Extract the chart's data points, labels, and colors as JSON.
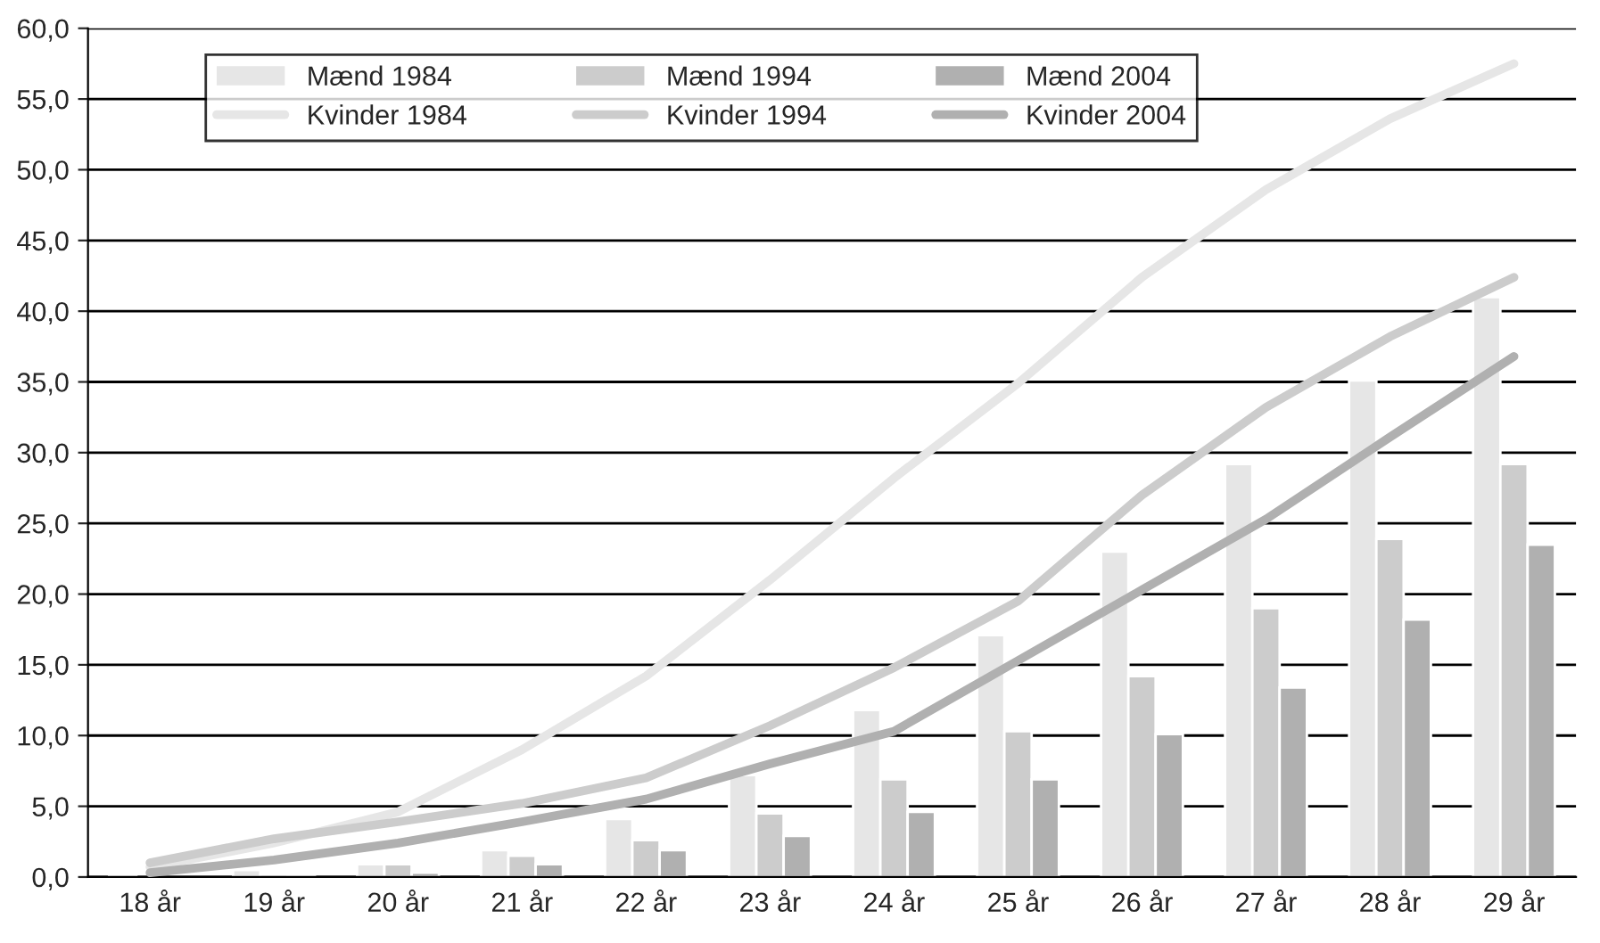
{
  "chart_data": {
    "type": "bar",
    "categories": [
      "18 år",
      "19 år",
      "20 år",
      "21 år",
      "22 år",
      "23 år",
      "24 år",
      "25 år",
      "26 år",
      "27 år",
      "28 år",
      "29 år"
    ],
    "series": [
      {
        "name": "Mænd 1984",
        "color": "#e6e6e6",
        "values": [
          0.2,
          0.5,
          0.9,
          1.9,
          4.1,
          7.2,
          11.8,
          17.1,
          23.0,
          29.2,
          35.1,
          41.0
        ]
      },
      {
        "name": "Mænd 1994",
        "color": "#cccccc",
        "values": [
          null,
          0.2,
          0.9,
          1.5,
          2.6,
          4.5,
          6.9,
          10.3,
          14.2,
          19.0,
          23.9,
          29.2
        ]
      },
      {
        "name": "Mænd 2004",
        "color": "#b0b0b0",
        "values": [
          null,
          0.1,
          0.3,
          0.9,
          1.9,
          2.9,
          4.6,
          6.9,
          10.1,
          13.4,
          18.2,
          23.5
        ]
      },
      {
        "name": "Kvinder 1984",
        "type": "line",
        "color": "#e6e6e6",
        "values": [
          0.7,
          2.4,
          4.6,
          9.0,
          14.2,
          21.0,
          28.2,
          34.9,
          42.4,
          48.6,
          53.6,
          57.5
        ]
      },
      {
        "name": "Kvinder 1994",
        "type": "line",
        "color": "#cccccc",
        "values": [
          1.0,
          2.7,
          3.9,
          5.2,
          7.0,
          10.7,
          14.8,
          19.5,
          27.0,
          33.2,
          38.2,
          42.4
        ]
      },
      {
        "name": "Kvinder 2004",
        "type": "line",
        "color": "#b0b0b0",
        "values": [
          0.3,
          1.2,
          2.4,
          3.9,
          5.5,
          8.0,
          10.3,
          15.3,
          20.3,
          25.3,
          31.1,
          36.8
        ]
      }
    ],
    "ylim": [
      0,
      60
    ],
    "yticks": [
      {
        "value": 0,
        "label": "0,0"
      },
      {
        "value": 5,
        "label": "5,0"
      },
      {
        "value": 10,
        "label": "10,0"
      },
      {
        "value": 15,
        "label": "15,0"
      },
      {
        "value": 20,
        "label": "20,0"
      },
      {
        "value": 25,
        "label": "25,0"
      },
      {
        "value": 30,
        "label": "30,0"
      },
      {
        "value": 35,
        "label": "35,0"
      },
      {
        "value": 40,
        "label": "40,0"
      },
      {
        "value": 45,
        "label": "45,0"
      },
      {
        "value": 50,
        "label": "50,0"
      },
      {
        "value": 55,
        "label": "55,0"
      },
      {
        "value": 60,
        "label": "60,0"
      }
    ],
    "grid": "y",
    "legend": "top left",
    "marker": "none",
    "line_style": "solid"
  }
}
